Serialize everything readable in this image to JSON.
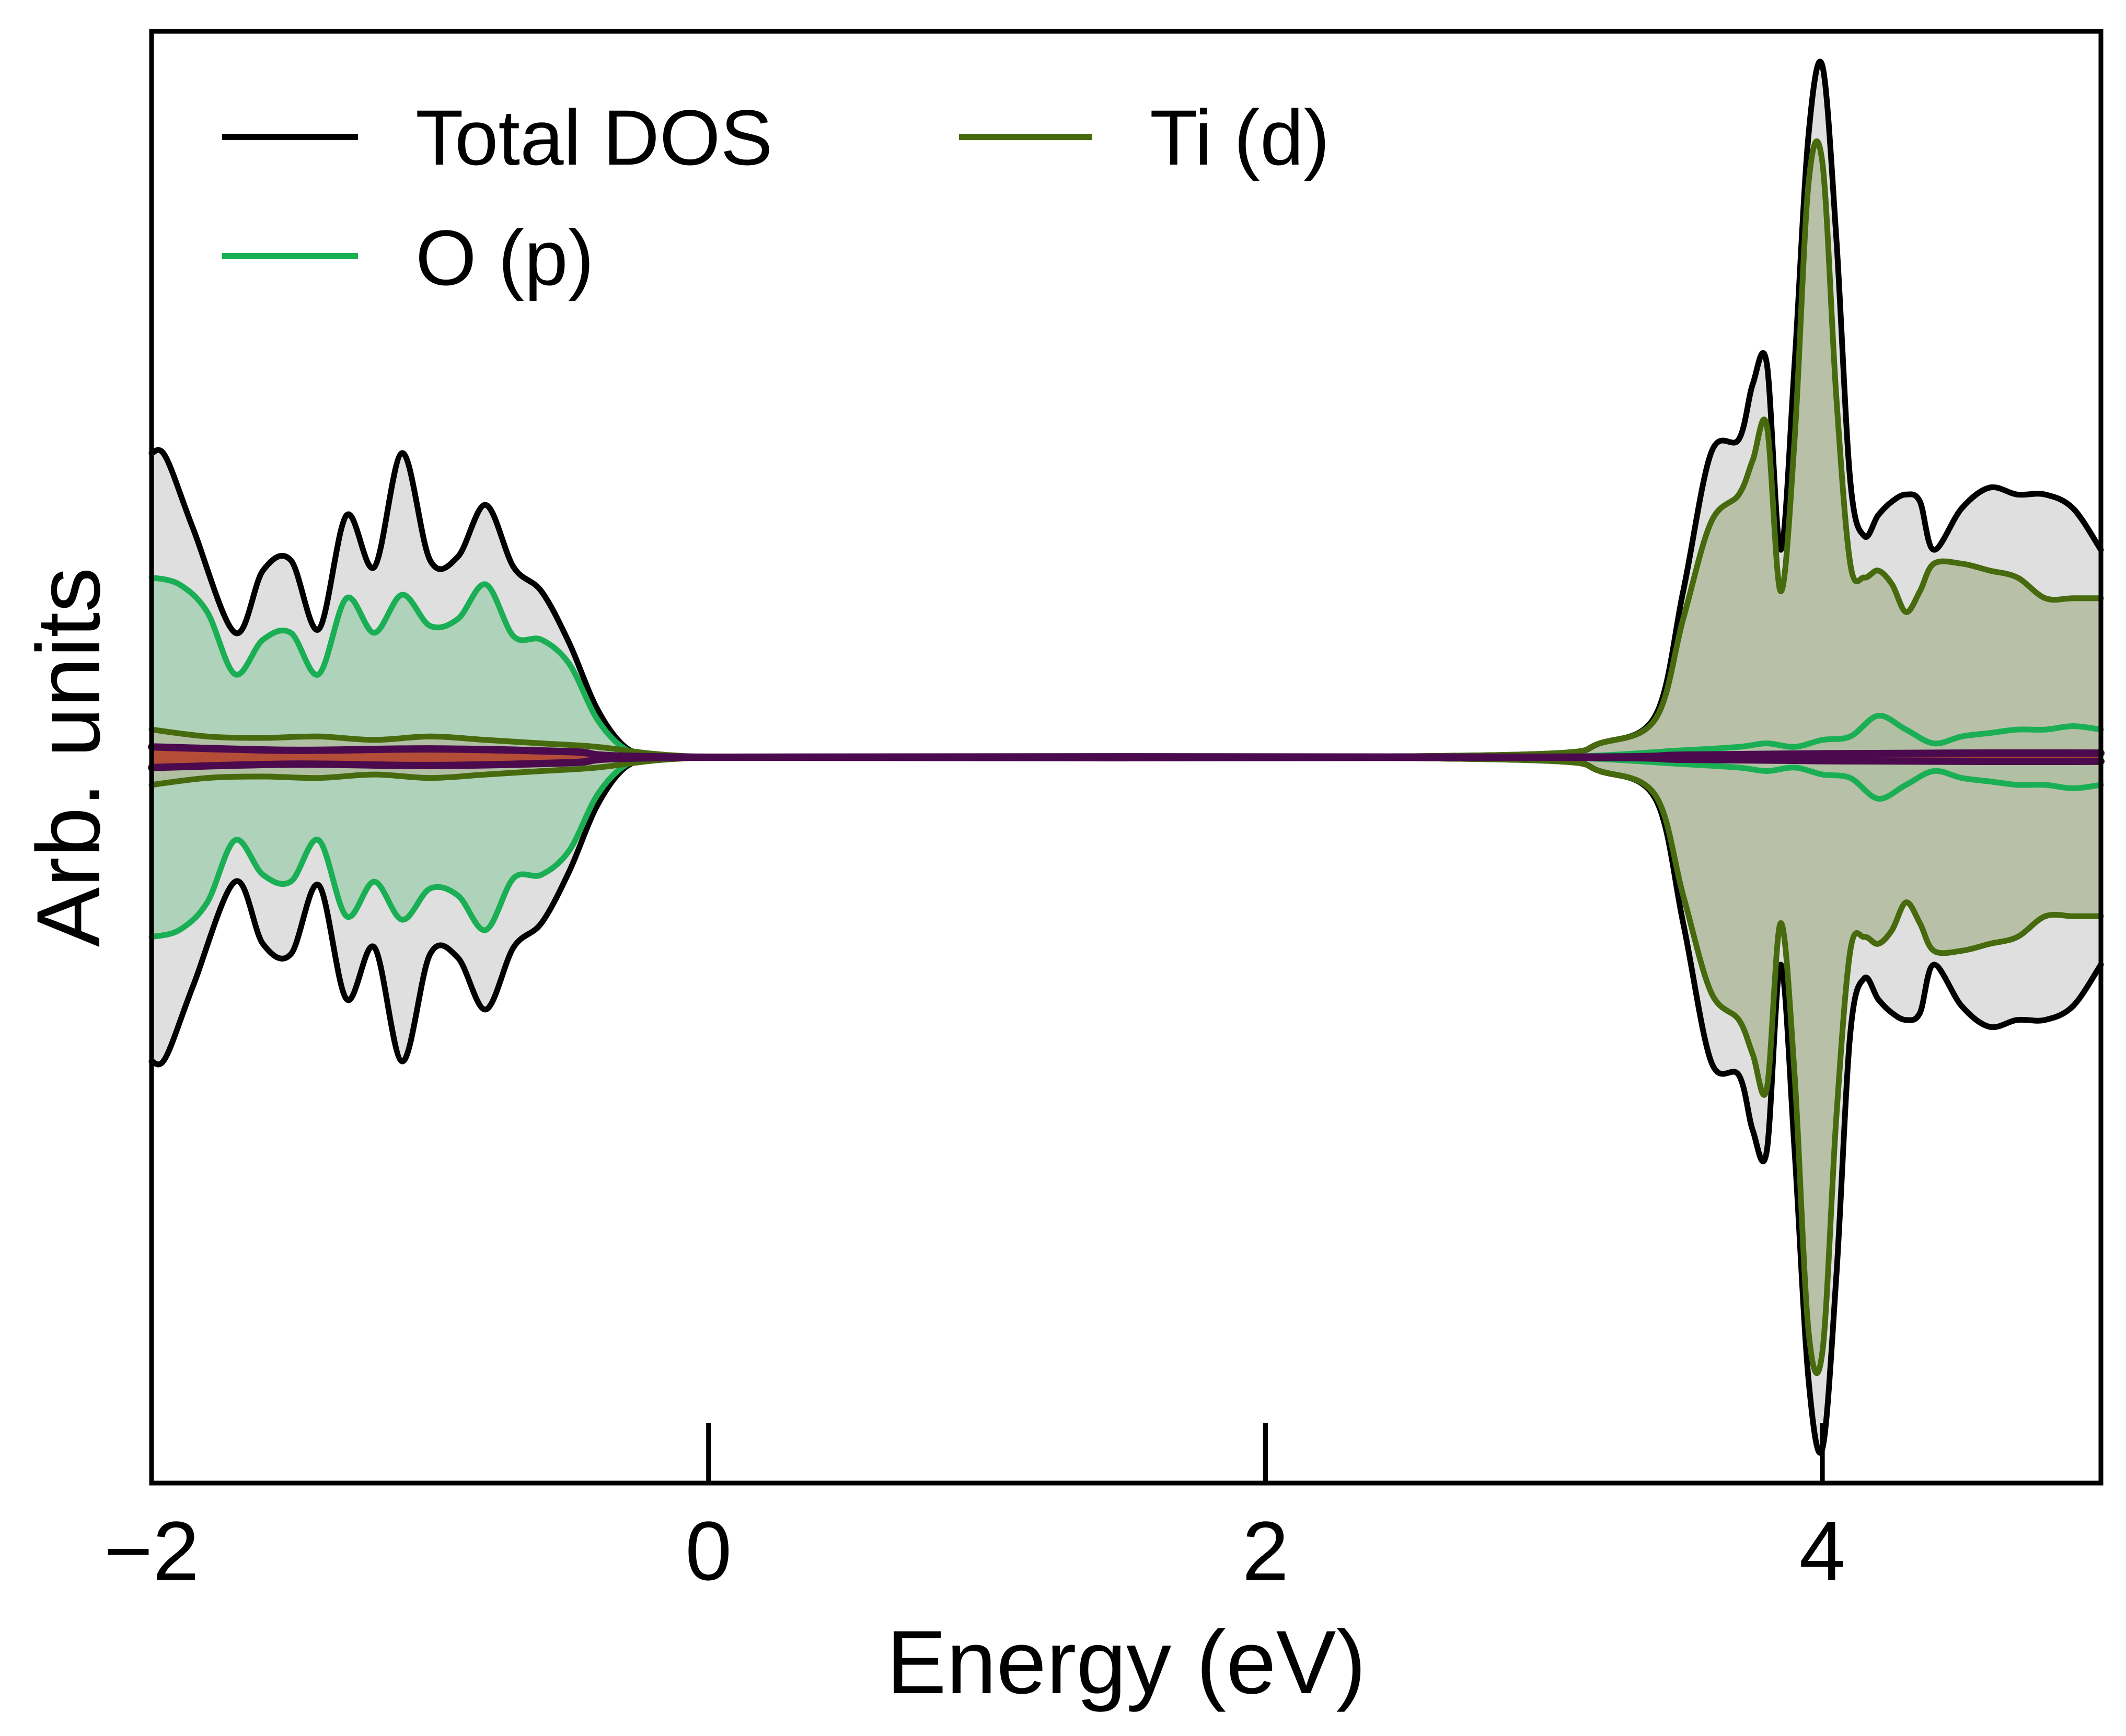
{
  "chart_data": {
    "type": "area",
    "title": "",
    "subtitle": "",
    "xlabel": "Energy (eV)",
    "ylabel": "Arb. units",
    "xlim": [
      -2,
      5
    ],
    "ylim": [
      -10.5,
      10.5
    ],
    "xticks": [
      -2,
      0,
      2,
      4
    ],
    "xtick_labels": [
      "−2",
      "0",
      "2",
      "4"
    ],
    "yticks_shown": false,
    "grid": false,
    "legend": {
      "placement": "top-left",
      "columns": 2,
      "entries": [
        "Total DOS",
        "Ti (d)",
        "O (p)"
      ]
    },
    "note": "Spin-up DOS plotted as positive values, spin-down as negative (mirrored about zero).",
    "series": [
      {
        "name": "Total DOS",
        "color": "#000000",
        "fill": "#d9d9d9",
        "in_legend": true,
        "up": {
          "x": [
            -2.0,
            -1.95,
            -1.85,
            -1.7,
            -1.6,
            -1.5,
            -1.4,
            -1.3,
            -1.2,
            -1.1,
            -1.0,
            -0.9,
            -0.8,
            -0.7,
            -0.6,
            -0.5,
            -0.4,
            -0.3,
            -0.2,
            -0.1,
            0.0,
            0.1,
            1.0,
            2.0,
            3.0,
            3.2,
            3.4,
            3.5,
            3.6,
            3.7,
            3.75,
            3.8,
            3.85,
            3.9,
            3.95,
            4.0,
            4.05,
            4.1,
            4.15,
            4.2,
            4.25,
            4.3,
            4.35,
            4.4,
            4.5,
            4.6,
            4.7,
            4.8,
            4.9,
            5.0
          ],
          "y": [
            4.4,
            4.35,
            3.3,
            1.8,
            2.7,
            2.85,
            1.85,
            3.5,
            2.75,
            4.4,
            2.85,
            2.9,
            3.65,
            2.75,
            2.4,
            1.65,
            0.7,
            0.15,
            0.03,
            0.01,
            0.0,
            0.0,
            0.0,
            0.0,
            0.05,
            0.2,
            0.6,
            2.4,
            4.4,
            4.6,
            5.4,
            5.7,
            3.0,
            5.7,
            9.0,
            10.0,
            7.5,
            4.0,
            3.2,
            3.5,
            3.7,
            3.8,
            3.7,
            3.0,
            3.6,
            3.9,
            3.8,
            3.8,
            3.6,
            3.0
          ]
        },
        "down": {
          "x": [
            -2.0,
            -1.95,
            -1.85,
            -1.7,
            -1.6,
            -1.5,
            -1.4,
            -1.3,
            -1.2,
            -1.1,
            -1.0,
            -0.9,
            -0.8,
            -0.7,
            -0.6,
            -0.5,
            -0.4,
            -0.3,
            -0.2,
            -0.1,
            0.0,
            0.1,
            1.0,
            2.0,
            3.0,
            3.2,
            3.4,
            3.5,
            3.6,
            3.7,
            3.75,
            3.8,
            3.85,
            3.9,
            3.95,
            4.0,
            4.05,
            4.1,
            4.15,
            4.2,
            4.25,
            4.3,
            4.35,
            4.4,
            4.5,
            4.6,
            4.7,
            4.8,
            4.9,
            5.0
          ],
          "y": [
            -4.4,
            -4.35,
            -3.3,
            -1.8,
            -2.7,
            -2.85,
            -1.85,
            -3.5,
            -2.75,
            -4.4,
            -2.85,
            -2.9,
            -3.65,
            -2.75,
            -2.4,
            -1.65,
            -0.7,
            -0.15,
            -0.03,
            -0.01,
            0.0,
            0.0,
            0.0,
            0.0,
            -0.05,
            -0.2,
            -0.6,
            -2.4,
            -4.4,
            -4.6,
            -5.4,
            -5.7,
            -3.0,
            -5.7,
            -9.0,
            -10.0,
            -7.5,
            -4.0,
            -3.2,
            -3.5,
            -3.7,
            -3.8,
            -3.7,
            -3.0,
            -3.6,
            -3.9,
            -3.8,
            -3.8,
            -3.6,
            -3.0
          ]
        }
      },
      {
        "name": "O (p)",
        "color": "#1aaf54",
        "fill": "#a7d0b4",
        "in_legend": true,
        "up": {
          "x": [
            -2.0,
            -1.9,
            -1.8,
            -1.7,
            -1.6,
            -1.5,
            -1.4,
            -1.3,
            -1.2,
            -1.1,
            -1.0,
            -0.9,
            -0.8,
            -0.7,
            -0.6,
            -0.5,
            -0.4,
            -0.3,
            -0.2,
            -0.1,
            0.0,
            0.1,
            1.0,
            2.0,
            3.0,
            3.5,
            3.7,
            3.8,
            3.9,
            4.0,
            4.1,
            4.2,
            4.3,
            4.4,
            4.5,
            4.6,
            4.7,
            4.8,
            4.9,
            5.0
          ],
          "y": [
            2.6,
            2.5,
            2.1,
            1.2,
            1.7,
            1.8,
            1.2,
            2.3,
            1.8,
            2.35,
            1.9,
            2.0,
            2.5,
            1.75,
            1.7,
            1.35,
            0.55,
            0.12,
            0.03,
            0.01,
            0.0,
            0.0,
            0.0,
            0.0,
            0.0,
            0.1,
            0.15,
            0.2,
            0.15,
            0.25,
            0.3,
            0.6,
            0.4,
            0.2,
            0.3,
            0.35,
            0.4,
            0.4,
            0.45,
            0.4
          ]
        },
        "down": {
          "x": [
            -2.0,
            -1.9,
            -1.8,
            -1.7,
            -1.6,
            -1.5,
            -1.4,
            -1.3,
            -1.2,
            -1.1,
            -1.0,
            -0.9,
            -0.8,
            -0.7,
            -0.6,
            -0.5,
            -0.4,
            -0.3,
            -0.2,
            -0.1,
            0.0,
            0.1,
            1.0,
            2.0,
            3.0,
            3.5,
            3.7,
            3.8,
            3.9,
            4.0,
            4.1,
            4.2,
            4.3,
            4.4,
            4.5,
            4.6,
            4.7,
            4.8,
            4.9,
            5.0
          ],
          "y": [
            -2.6,
            -2.5,
            -2.1,
            -1.2,
            -1.7,
            -1.8,
            -1.2,
            -2.3,
            -1.8,
            -2.35,
            -1.9,
            -2.0,
            -2.5,
            -1.75,
            -1.7,
            -1.35,
            -0.55,
            -0.12,
            -0.03,
            -0.01,
            0.0,
            0.0,
            0.0,
            0.0,
            0.0,
            -0.1,
            -0.15,
            -0.2,
            -0.15,
            -0.25,
            -0.3,
            -0.6,
            -0.4,
            -0.2,
            -0.3,
            -0.35,
            -0.4,
            -0.4,
            -0.45,
            -0.4
          ]
        }
      },
      {
        "name": "Ti (d)",
        "color": "#466a0d",
        "fill": "#b1bc9f",
        "in_legend": true,
        "up": {
          "x": [
            -2.0,
            -1.8,
            -1.6,
            -1.4,
            -1.2,
            -1.0,
            -0.8,
            -0.6,
            -0.4,
            -0.2,
            0.0,
            0.1,
            1.0,
            2.0,
            3.0,
            3.2,
            3.4,
            3.5,
            3.6,
            3.7,
            3.75,
            3.8,
            3.85,
            3.9,
            3.95,
            4.0,
            4.05,
            4.1,
            4.15,
            4.2,
            4.25,
            4.3,
            4.35,
            4.4,
            4.5,
            4.6,
            4.7,
            4.8,
            4.9,
            5.0
          ],
          "y": [
            0.4,
            0.3,
            0.28,
            0.3,
            0.25,
            0.3,
            0.25,
            0.2,
            0.15,
            0.05,
            0.0,
            0.0,
            0.0,
            0.0,
            0.05,
            0.2,
            0.55,
            2.0,
            3.4,
            3.8,
            4.3,
            4.8,
            2.4,
            4.6,
            8.3,
            8.6,
            5.2,
            2.8,
            2.6,
            2.7,
            2.5,
            2.1,
            2.4,
            2.8,
            2.8,
            2.7,
            2.6,
            2.3,
            2.3,
            2.3
          ]
        },
        "down": {
          "x": [
            -2.0,
            -1.8,
            -1.6,
            -1.4,
            -1.2,
            -1.0,
            -0.8,
            -0.6,
            -0.4,
            -0.2,
            0.0,
            0.1,
            1.0,
            2.0,
            3.0,
            3.2,
            3.4,
            3.5,
            3.6,
            3.7,
            3.75,
            3.8,
            3.85,
            3.9,
            3.95,
            4.0,
            4.05,
            4.1,
            4.15,
            4.2,
            4.25,
            4.3,
            4.35,
            4.4,
            4.5,
            4.6,
            4.7,
            4.8,
            4.9,
            5.0
          ],
          "y": [
            -0.4,
            -0.3,
            -0.28,
            -0.3,
            -0.25,
            -0.3,
            -0.25,
            -0.2,
            -0.15,
            -0.05,
            0.0,
            0.0,
            0.0,
            0.0,
            -0.05,
            -0.2,
            -0.55,
            -2.0,
            -3.4,
            -3.8,
            -4.3,
            -4.8,
            -2.4,
            -4.6,
            -8.3,
            -8.6,
            -5.2,
            -2.8,
            -2.6,
            -2.7,
            -2.5,
            -2.1,
            -2.4,
            -2.8,
            -2.8,
            -2.7,
            -2.6,
            -2.3,
            -2.3,
            -2.3
          ]
        }
      },
      {
        "name": "Minor PDOS",
        "color": "#4b0a4d",
        "fill": "#b5402b",
        "in_legend": false,
        "up": {
          "x": [
            -2.0,
            -1.5,
            -1.0,
            -0.5,
            0.0,
            3.0,
            3.5,
            4.0,
            4.5,
            5.0
          ],
          "y": [
            0.15,
            0.1,
            0.12,
            0.08,
            0.0,
            0.0,
            0.03,
            0.05,
            0.06,
            0.06
          ]
        },
        "down": {
          "x": [
            -2.0,
            -1.5,
            -1.0,
            -0.5,
            0.0,
            3.0,
            3.5,
            4.0,
            4.5,
            5.0
          ],
          "y": [
            -0.15,
            -0.1,
            -0.12,
            -0.08,
            0.0,
            0.0,
            -0.03,
            -0.05,
            -0.06,
            -0.06
          ]
        }
      }
    ]
  }
}
